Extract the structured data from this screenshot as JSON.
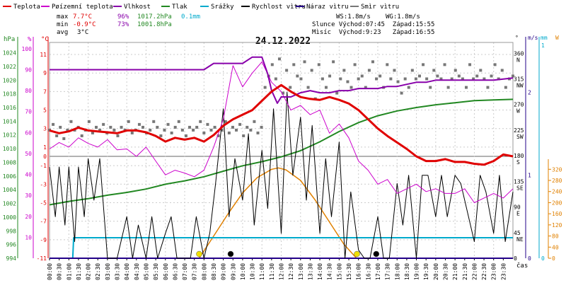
{
  "chart_data": {
    "type": "line",
    "title": "24.12.2022",
    "legend": [
      {
        "label": "Teplota",
        "color": "#e00000"
      },
      {
        "label": "Pøízemní teplota",
        "color": "#cc00cc"
      },
      {
        "label": "Vlhkost",
        "color": "#8800aa"
      },
      {
        "label": "Tlak",
        "color": "#228822"
      },
      {
        "label": "Srážky",
        "color": "#00aacc"
      },
      {
        "label": "Rychlost vìtru",
        "color": "#000000"
      },
      {
        "label": "Náraz vìtru",
        "color": "#220088"
      },
      {
        "label": "Smìr vìtru",
        "color": "#777777"
      }
    ],
    "stats": {
      "max": {
        "label": "max",
        "temp": "7.7°C",
        "hum": "96%",
        "press": "1017.2hPa",
        "rain": "0.1mm"
      },
      "min": {
        "label": "min",
        "temp": "-0.9°C",
        "hum": "73%",
        "press": "1001.8hPa"
      },
      "avg": {
        "label": "avg",
        "temp": "3°C"
      }
    },
    "info": {
      "ws": "WS:1.8m/s",
      "wg": "WG:1.8m/s",
      "sun": "Slunce Východ:07:45  Západ:15:55",
      "moon": "Mìsíc  Východ:9:23   Západ:16:55"
    },
    "axes": {
      "hpa_title": "hPa",
      "pct_title": "%",
      "deg_title": "°C",
      "dir_title": "°",
      "ms_title": "m/s",
      "mm_title": "mm",
      "w_title": "W",
      "time_title": "čas",
      "hpa_ticks": [
        "1024",
        "1022",
        "1020",
        "1018",
        "1016",
        "1014",
        "1012",
        "1010",
        "1008",
        "1006",
        "1004",
        "1002",
        "1000",
        "998",
        "996",
        "994"
      ],
      "pct_ticks": [
        "100",
        "90",
        "80",
        "70",
        "60",
        "50",
        "40",
        "30",
        "20",
        "10"
      ],
      "deg_ticks": [
        "11",
        "9",
        "7",
        "5",
        "3",
        "1",
        "0",
        "-1",
        "-3",
        "-5",
        "-7",
        "-9",
        "-11"
      ],
      "dir_ticks": [
        "360\nN",
        "315\nNW",
        "270\nW",
        "225\nSW",
        "180\nS",
        "135\nSE",
        "90\nE",
        "45\nNE",
        "0"
      ],
      "ms_ticks": [
        "2",
        "1",
        "0"
      ],
      "mm_ticks": [
        "1",
        "0"
      ],
      "w_ticks": [
        "320",
        "280",
        "240",
        "200",
        "160",
        "120",
        "80",
        "40",
        "0"
      ],
      "time_labels": [
        "00:00",
        "00:30",
        "01:00",
        "01:30",
        "02:00",
        "02:30",
        "03:00",
        "03:30",
        "04:00",
        "04:30",
        "05:00",
        "05:30",
        "06:00",
        "06:30",
        "07:00",
        "07:30",
        "08:00",
        "08:30",
        "09:00",
        "09:30",
        "10:00",
        "10:30",
        "11:00",
        "11:30",
        "12:00",
        "12:30",
        "13:00",
        "13:30",
        "14:00",
        "14:30",
        "15:00",
        "15:30",
        "16:00",
        "16:30",
        "17:00",
        "17:30",
        "18:00",
        "18:30",
        "19:00",
        "19:30",
        "20:00",
        "20:30",
        "21:00",
        "21:30",
        "22:00",
        "22:30",
        "23:00",
        "23:30"
      ],
      "temp_range": [
        -11,
        12.3
      ],
      "press_range": [
        994,
        1025.5
      ],
      "hum_range": [
        0,
        103
      ],
      "wind_range": [
        0,
        2.6
      ],
      "rad_range": [
        0,
        364
      ]
    },
    "series": [
      {
        "name": "Teplota",
        "color": "#e00000",
        "x": [
          0,
          0.5,
          1,
          1.5,
          2,
          2.5,
          3,
          3.5,
          4,
          4.5,
          5,
          5.5,
          6,
          6.5,
          7,
          7.5,
          8,
          8.5,
          9,
          9.5,
          10,
          10.5,
          11,
          11.5,
          12,
          12.5,
          13,
          13.5,
          14,
          14.5,
          15,
          15.5,
          16,
          16.5,
          17,
          17.5,
          18,
          18.5,
          19,
          19.5,
          20,
          20.5,
          21,
          21.5,
          22,
          22.5,
          23,
          23.5,
          24
        ],
        "y": [
          2.8,
          2.5,
          2.7,
          3.1,
          2.8,
          2.7,
          2.6,
          2.5,
          2.8,
          2.8,
          2.6,
          2.2,
          1.6,
          2.0,
          1.8,
          2.0,
          1.6,
          2.3,
          3.3,
          4.0,
          4.5,
          5.0,
          6.0,
          7.0,
          7.7,
          7.0,
          6.4,
          6.2,
          6.1,
          6.4,
          6.1,
          5.7,
          5.0,
          4.0,
          3.0,
          2.2,
          1.5,
          0.8,
          0.0,
          -0.5,
          -0.5,
          -0.3,
          -0.6,
          -0.6,
          -0.8,
          -0.9,
          -0.5,
          0.2,
          0.0
        ]
      },
      {
        "name": "Pøízemní teplota",
        "color": "#cc00cc",
        "x": [
          0,
          0.5,
          1,
          1.5,
          2,
          2.5,
          3,
          3.5,
          4,
          4.5,
          5,
          5.5,
          6,
          6.5,
          7,
          7.5,
          8,
          8.5,
          9,
          9.5,
          10,
          10.5,
          11,
          11.5,
          12,
          12.5,
          13,
          13.5,
          14,
          14.5,
          15,
          15.5,
          16,
          16.5,
          17,
          17.5,
          18,
          18.5,
          19,
          19.5,
          20,
          20.5,
          21,
          21.5,
          22,
          22.5,
          23,
          23.5,
          24
        ],
        "y": [
          0.8,
          1.5,
          1.0,
          2.0,
          1.4,
          1.0,
          1.8,
          0.7,
          0.8,
          0.0,
          1.0,
          -0.5,
          -2.0,
          -1.5,
          -1.8,
          -2.2,
          -1.5,
          1.0,
          4.0,
          9.8,
          7.5,
          9.0,
          10.2,
          8.0,
          7.0,
          5.0,
          5.5,
          4.5,
          5.0,
          2.5,
          3.5,
          2.0,
          -0.5,
          -1.5,
          -3.0,
          -2.5,
          -4.0,
          -3.5,
          -3.0,
          -3.8,
          -3.5,
          -4.0,
          -4.0,
          -3.5,
          -5.0,
          -4.5,
          -4.0,
          -4.5,
          -3.5
        ]
      },
      {
        "name": "Vlhkost",
        "color": "#8800aa",
        "x": [
          0,
          1,
          2,
          3,
          4,
          5,
          6,
          7,
          8,
          8.5,
          9,
          9.5,
          10,
          10.5,
          11,
          11.3,
          11.5,
          11.8,
          12,
          12.5,
          13,
          13.5,
          14,
          14.5,
          15,
          15.5,
          16,
          16.5,
          17,
          17.5,
          18,
          18.5,
          19,
          19.5,
          20,
          21,
          22,
          23,
          24
        ],
        "y": [
          90,
          90,
          90,
          90,
          90,
          90,
          90,
          90,
          90,
          93,
          93,
          93,
          93,
          96,
          96,
          88,
          80,
          74,
          77,
          77,
          79,
          80,
          79,
          79,
          80,
          80,
          81,
          81,
          81,
          82,
          82,
          83,
          84,
          84,
          85,
          85,
          85,
          85,
          86
        ]
      },
      {
        "name": "Tlak",
        "color": "#228822",
        "x": [
          0,
          1,
          2,
          3,
          4,
          5,
          6,
          7,
          8,
          9,
          10,
          11,
          12,
          13,
          14,
          15,
          16,
          17,
          18,
          19,
          20,
          21,
          22,
          23,
          24
        ],
        "y": [
          1001.8,
          1002.3,
          1002.7,
          1003.2,
          1003.6,
          1004.1,
          1004.8,
          1005.3,
          1005.9,
          1006.7,
          1007.5,
          1008.1,
          1008.8,
          1009.7,
          1011.0,
          1012.5,
          1013.8,
          1014.8,
          1015.5,
          1016.0,
          1016.4,
          1016.7,
          1017.0,
          1017.1,
          1017.2
        ]
      },
      {
        "name": "Srážky",
        "color": "#00aacc",
        "x": [
          0,
          1.2,
          1.25,
          24
        ],
        "y": [
          0,
          0,
          0.1,
          0.1
        ]
      },
      {
        "name": "Rychlost vìtru",
        "color": "#000000",
        "x": [
          0,
          0.3,
          0.5,
          0.8,
          1,
          1.3,
          1.5,
          1.8,
          2,
          2.3,
          2.6,
          3,
          3.5,
          4,
          4.3,
          4.6,
          5,
          5.3,
          5.6,
          6,
          6.3,
          6.6,
          7,
          7.3,
          7.6,
          8,
          8.3,
          8.6,
          9,
          9.3,
          9.6,
          10,
          10.3,
          10.6,
          11,
          11.3,
          11.6,
          12,
          12.3,
          12.6,
          13,
          13.3,
          13.6,
          14,
          14.3,
          14.6,
          15,
          15.3,
          15.6,
          16,
          16.3,
          16.6,
          17,
          17.3,
          17.6,
          18,
          18.3,
          18.6,
          19,
          19.3,
          19.6,
          20,
          20.3,
          20.6,
          21,
          21.3,
          21.6,
          22,
          22.3,
          22.6,
          23,
          23.3,
          23.6,
          24
        ],
        "y": [
          1.1,
          0.5,
          1.1,
          0.4,
          1.1,
          0.2,
          1.1,
          0.5,
          1.2,
          0.7,
          1.2,
          0,
          0,
          0.5,
          0,
          0.4,
          0,
          0.5,
          0,
          0.3,
          0.5,
          0,
          0,
          0,
          0.5,
          0,
          0.3,
          0.9,
          1.8,
          0.5,
          1.2,
          0.7,
          1.5,
          0.4,
          1.3,
          0.6,
          1.8,
          0.3,
          2.0,
          1.0,
          1.7,
          0.7,
          1.6,
          0.3,
          1.2,
          0.5,
          1.4,
          0,
          0.8,
          0.1,
          0,
          0,
          0.5,
          0,
          0,
          0.9,
          0.4,
          1.0,
          0,
          1.0,
          1.0,
          0.5,
          1.0,
          0.5,
          1.0,
          0.9,
          0.6,
          0.2,
          1.0,
          0.8,
          0.3,
          1.0,
          0.2,
          0.8
        ]
      },
      {
        "name": "Náraz vìtru",
        "color": "#220088",
        "x": [
          0,
          20.3,
          20.4,
          24
        ],
        "y": [
          0,
          0,
          0,
          0
        ]
      },
      {
        "name": "Solar",
        "color": "#e08000",
        "x": [
          7.75,
          8.5,
          9.25,
          10,
          10.75,
          11.5,
          11.85,
          12.25,
          13,
          13.75,
          14.5,
          15.25,
          15.9
        ],
        "y": [
          0,
          80,
          160,
          235,
          290,
          320,
          325,
          318,
          280,
          210,
          130,
          50,
          0
        ]
      }
    ],
    "wind_direction_deg": [
      225,
      235,
      215,
      230,
      210,
      225,
      240,
      225,
      230,
      215,
      225,
      240,
      220,
      230,
      225,
      235,
      220,
      230,
      225,
      215,
      230,
      225,
      240,
      220,
      225,
      235,
      230,
      220,
      225,
      240,
      230,
      215,
      225,
      235,
      220,
      230,
      240,
      225,
      215,
      230,
      225,
      230,
      240,
      220,
      235,
      225,
      230,
      215,
      225,
      240,
      220,
      230,
      225,
      235,
      215,
      230,
      225,
      240,
      220,
      230,
      300,
      320,
      340,
      315,
      350,
      290,
      330,
      300,
      340,
      320,
      315,
      345,
      300,
      330,
      280,
      340,
      315,
      300,
      320,
      345,
      290,
      315,
      330,
      310,
      300,
      340,
      315,
      320,
      300,
      330,
      345,
      315,
      320,
      300,
      340,
      315,
      330,
      310,
      290,
      315,
      300,
      330,
      315,
      320,
      340,
      315,
      300,
      330,
      320,
      315,
      340,
      300,
      315,
      330,
      320,
      315,
      300,
      340,
      315,
      320,
      330,
      315,
      300,
      320,
      340,
      315,
      330,
      300,
      315,
      320
    ],
    "markers": [
      {
        "t": 7.75,
        "color": "#f0e000",
        "kind": "sunrise"
      },
      {
        "t": 15.92,
        "color": "#f0e000",
        "kind": "sunset"
      },
      {
        "t": 9.38,
        "color": "#000000",
        "kind": "moonrise"
      },
      {
        "t": 16.92,
        "color": "#000000",
        "kind": "moonset"
      }
    ]
  }
}
